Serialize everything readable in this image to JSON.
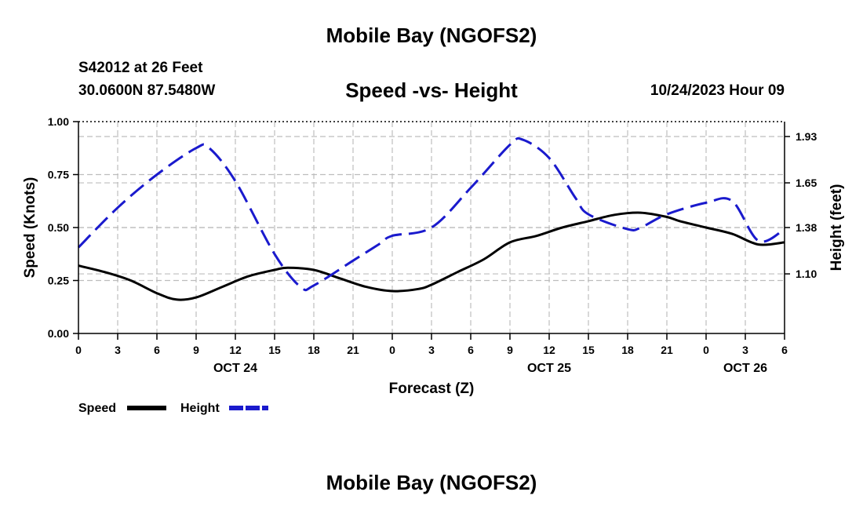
{
  "header": {
    "title": "Mobile Bay (NGOFS2)",
    "station_line1": "S42012 at 26 Feet",
    "station_line2": "30.0600N  87.5480W",
    "plot_title": "Speed -vs- Height",
    "date": "10/24/2023 Hour 09"
  },
  "footer": {
    "title": "Mobile Bay (NGOFS2)"
  },
  "colors": {
    "speed": "#000000",
    "height": "#1a1acd",
    "grid": "#bdbdbd"
  },
  "chart_data": {
    "type": "line",
    "title": "Speed -vs- Height",
    "xlabel": "Forecast (Z)",
    "ylabel": "Speed (Knots)",
    "y2label": "Height (feet)",
    "grid": true,
    "x_range": [
      0,
      54
    ],
    "xticks": [
      0,
      3,
      6,
      9,
      12,
      15,
      18,
      21,
      24,
      27,
      30,
      33,
      36,
      39,
      42,
      45,
      48,
      51,
      54
    ],
    "xtick_labels": [
      "0",
      "3",
      "6",
      "9",
      "12",
      "15",
      "18",
      "21",
      "0",
      "3",
      "6",
      "9",
      "12",
      "15",
      "18",
      "21",
      "0",
      "3",
      "6"
    ],
    "day_labels": [
      {
        "x": 12,
        "label": "OCT 24"
      },
      {
        "x": 36,
        "label": "OCT 25"
      },
      {
        "x": 51,
        "label": "OCT 26"
      }
    ],
    "y_left": {
      "range": [
        0,
        1
      ],
      "ticks": [
        0,
        0.25,
        0.5,
        0.75,
        1.0
      ],
      "tick_labels": [
        "0.00",
        "0.25",
        "0.50",
        "0.75",
        "1.00"
      ]
    },
    "y_right": {
      "range": [
        0.74,
        2.02
      ],
      "ticks": [
        1.1,
        1.38,
        1.65,
        1.93
      ],
      "tick_labels": [
        "1.10",
        "1.38",
        "1.65",
        "1.93"
      ]
    },
    "legend": {
      "position": "bottom-left",
      "entries": [
        {
          "name": "Speed",
          "style": "solid"
        },
        {
          "name": "Height",
          "style": "dashed"
        }
      ]
    },
    "series": [
      {
        "name": "Speed",
        "axis": "left",
        "style": "solid",
        "x": [
          0,
          2,
          4,
          6,
          7.5,
          9,
          11,
          13,
          15,
          16,
          18,
          20,
          22,
          24,
          26,
          27,
          29,
          31,
          33,
          35,
          37,
          39,
          41,
          43,
          45,
          46,
          48,
          50,
          52,
          54
        ],
        "values": [
          0.32,
          0.29,
          0.25,
          0.19,
          0.16,
          0.17,
          0.22,
          0.27,
          0.3,
          0.31,
          0.3,
          0.26,
          0.22,
          0.2,
          0.21,
          0.23,
          0.29,
          0.35,
          0.43,
          0.46,
          0.5,
          0.53,
          0.56,
          0.57,
          0.55,
          0.53,
          0.5,
          0.47,
          0.42,
          0.43
        ]
      },
      {
        "name": "Height",
        "axis": "right",
        "style": "dashed",
        "x": [
          0,
          3,
          6,
          9,
          10,
          12,
          15,
          17,
          18,
          21,
          23,
          24,
          27,
          30,
          33,
          34,
          36,
          38,
          39,
          42,
          43,
          45,
          48,
          50,
          52,
          54
        ],
        "values": [
          1.26,
          1.5,
          1.7,
          1.86,
          1.86,
          1.66,
          1.22,
          1.02,
          1.03,
          1.18,
          1.28,
          1.33,
          1.38,
          1.62,
          1.88,
          1.91,
          1.8,
          1.56,
          1.46,
          1.37,
          1.38,
          1.46,
          1.53,
          1.54,
          1.3,
          1.37
        ]
      }
    ]
  }
}
